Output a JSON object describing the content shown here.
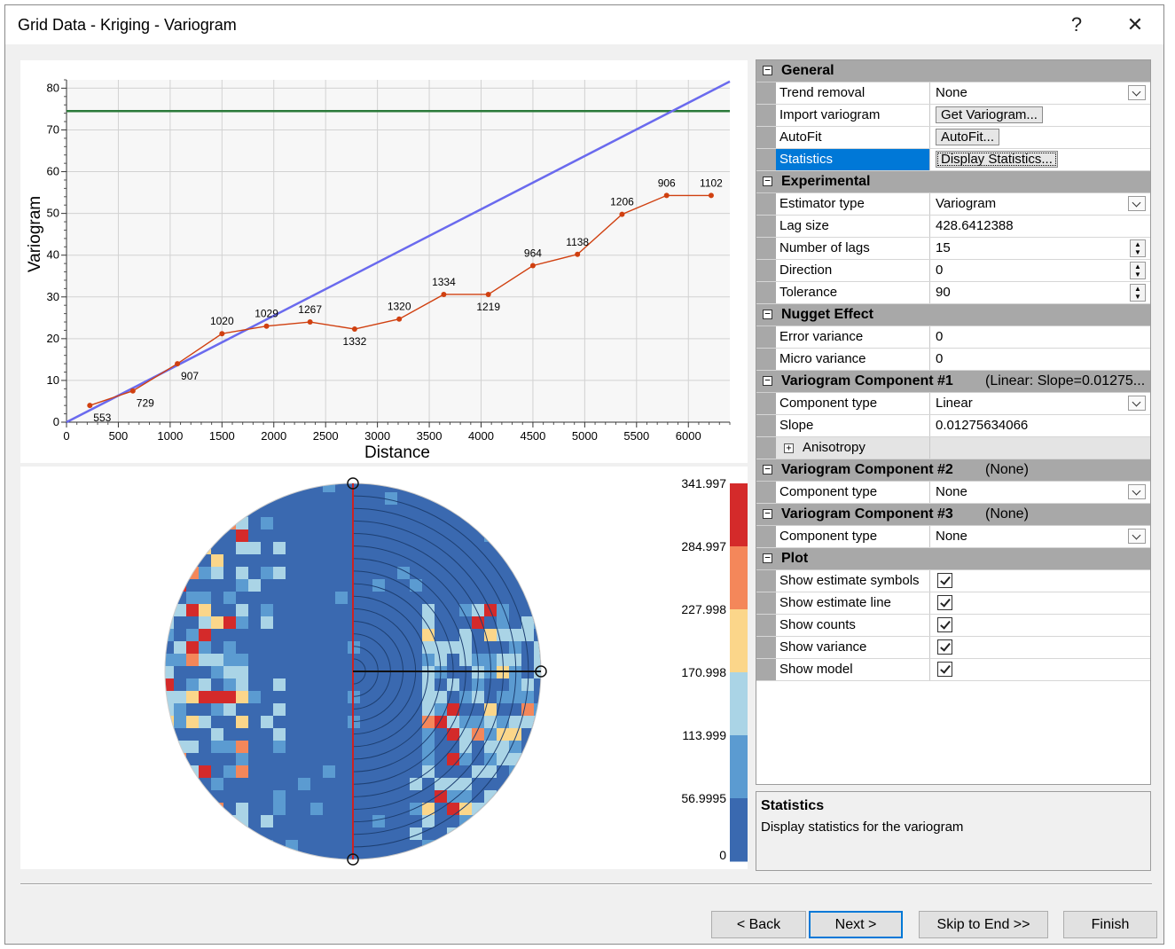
{
  "window": {
    "title": "Grid Data - Kriging - Variogram",
    "help_label": "?",
    "close_label": "✕"
  },
  "chart_data": [
    {
      "type": "line",
      "xlabel": "Distance",
      "ylabel": "Variogram",
      "xlim": [
        0,
        6400
      ],
      "ylim": [
        0,
        82
      ],
      "xticks": [
        0,
        500,
        1000,
        1500,
        2000,
        2500,
        3000,
        3500,
        4000,
        4500,
        5000,
        5500,
        6000
      ],
      "yticks": [
        0,
        10,
        20,
        30,
        40,
        50,
        60,
        70,
        80
      ],
      "grid": true,
      "series": [
        {
          "role": "experimental",
          "color": "#d04010",
          "x": [
            225,
            640,
            1070,
            1500,
            1930,
            2350,
            2780,
            3210,
            3640,
            4070,
            4500,
            4930,
            5360,
            5790,
            6220
          ],
          "y": [
            4,
            7.5,
            14,
            21.2,
            23,
            24,
            22.3,
            24.7,
            30.6,
            30.6,
            37.5,
            40.2,
            49.8,
            54.3,
            54.3
          ],
          "counts": [
            "553",
            "729",
            "907",
            "1020",
            "1029",
            "1267",
            "1332",
            "1320",
            "1334",
            "1219",
            "964",
            "1138",
            "1206",
            "906",
            "1102"
          ]
        },
        {
          "role": "model",
          "color": "#6a6aee",
          "x": [
            0,
            6400
          ],
          "y": [
            0,
            81.6
          ]
        },
        {
          "role": "variance",
          "color": "#2b7a3a",
          "x": [
            0,
            6400
          ],
          "y": [
            74.5,
            74.5
          ]
        }
      ]
    },
    {
      "type": "heatmap",
      "colorbar_labels": [
        "341.997",
        "284.997",
        "227.998",
        "170.998",
        "113.999",
        "56.9995",
        "0"
      ],
      "colors": [
        "#3a69b0",
        "#5b9bd1",
        "#aad4e6",
        "#fbd68a",
        "#f4875a",
        "#d42a2a"
      ],
      "ring_color": "#1d3f72",
      "axis_colors": {
        "vertical": "#cc2222",
        "horizontal": "#111111"
      }
    }
  ],
  "properties": {
    "general": {
      "title": "General",
      "trend_removal": {
        "name": "Trend removal",
        "value": "None"
      },
      "import_variogram": {
        "name": "Import variogram",
        "button": "Get Variogram..."
      },
      "autofit": {
        "name": "AutoFit",
        "button": "AutoFit..."
      },
      "statistics": {
        "name": "Statistics",
        "button": "Display Statistics..."
      }
    },
    "experimental": {
      "title": "Experimental",
      "estimator_type": {
        "name": "Estimator type",
        "value": "Variogram"
      },
      "lag_size": {
        "name": "Lag size",
        "value": "428.6412388"
      },
      "number_of_lags": {
        "name": "Number of lags",
        "value": "15"
      },
      "direction": {
        "name": "Direction",
        "value": "0"
      },
      "tolerance": {
        "name": "Tolerance",
        "value": "90"
      }
    },
    "nugget": {
      "title": "Nugget Effect",
      "error_variance": {
        "name": "Error variance",
        "value": "0"
      },
      "micro_variance": {
        "name": "Micro variance",
        "value": "0"
      }
    },
    "component1": {
      "title": "Variogram Component #1",
      "summary": "(Linear: Slope=0.01275...",
      "component_type": {
        "name": "Component type",
        "value": "Linear"
      },
      "slope": {
        "name": "Slope",
        "value": "0.01275634066"
      },
      "anisotropy": {
        "name": "Anisotropy",
        "toggle": "+"
      }
    },
    "component2": {
      "title": "Variogram Component #2",
      "summary": "(None)",
      "component_type": {
        "name": "Component type",
        "value": "None"
      }
    },
    "component3": {
      "title": "Variogram Component #3",
      "summary": "(None)",
      "component_type": {
        "name": "Component type",
        "value": "None"
      }
    },
    "plot": {
      "title": "Plot",
      "show_estimate_symbols": {
        "name": "Show estimate symbols",
        "checked": true
      },
      "show_estimate_line": {
        "name": "Show estimate line",
        "checked": true
      },
      "show_counts": {
        "name": "Show counts",
        "checked": true
      },
      "show_variance": {
        "name": "Show variance",
        "checked": true
      },
      "show_model": {
        "name": "Show model",
        "checked": true
      }
    }
  },
  "description": {
    "title": "Statistics",
    "text": "Display statistics for the variogram"
  },
  "buttons": {
    "back": "< Back",
    "next": "Next >",
    "skip": "Skip to End >>",
    "finish": "Finish"
  }
}
